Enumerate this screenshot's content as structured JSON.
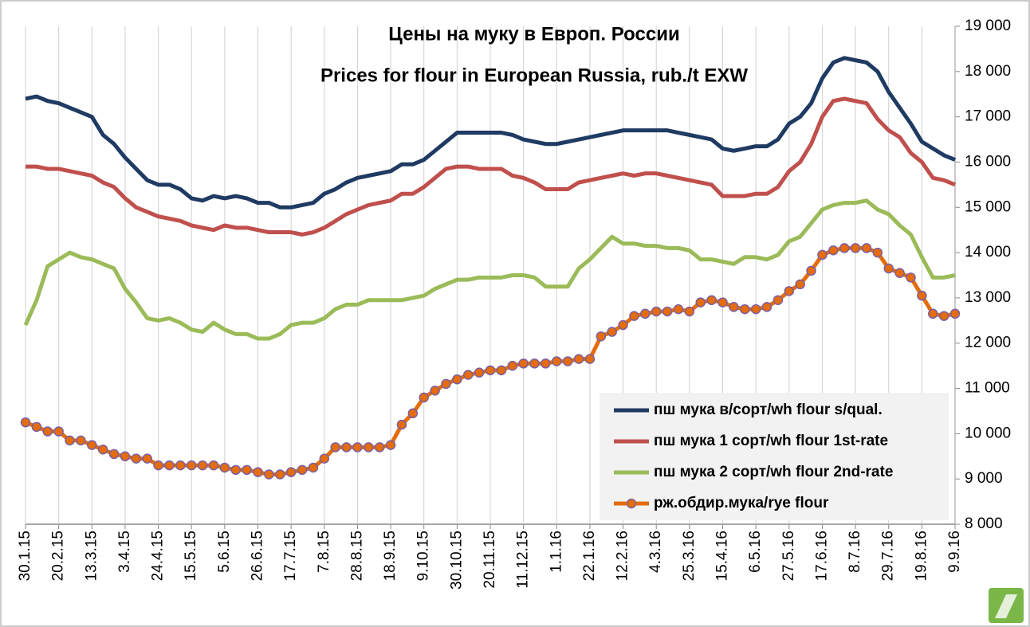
{
  "chart_data": {
    "type": "line",
    "title": "Цены на муку в Европ. России",
    "subtitle": "Prices for flour in European Russia, rub./t EXW",
    "categories": [
      "30.1.15",
      null,
      null,
      "20.2.15",
      null,
      null,
      "13.3.15",
      null,
      null,
      "3.4.15",
      null,
      null,
      "24.4.15",
      null,
      null,
      "15.5.15",
      null,
      null,
      "5.6.15",
      null,
      null,
      "26.6.15",
      null,
      null,
      "17.7.15",
      null,
      null,
      "7.8.15",
      null,
      null,
      "28.8.15",
      null,
      null,
      "18.9.15",
      null,
      null,
      "9.10.15",
      null,
      null,
      "30.10.15",
      null,
      null,
      "20.11.15",
      null,
      null,
      "11.12.15",
      null,
      null,
      "1.1.16",
      null,
      null,
      "22.1.16",
      null,
      null,
      "12.2.16",
      null,
      null,
      "4.3.16",
      null,
      null,
      "25.3.16",
      null,
      null,
      "15.4.16",
      null,
      null,
      "6.5.16",
      null,
      null,
      "27.5.16",
      null,
      null,
      "17.6.16",
      null,
      null,
      "8.7.16",
      null,
      null,
      "29.7.16",
      null,
      null,
      "19.8.16",
      null,
      null,
      "9.9.16"
    ],
    "series": [
      {
        "name": "пш мука в/сорт/wh flour s/qual.",
        "color": "#1f3b63",
        "marker": false,
        "values": [
          17400,
          17450,
          17350,
          17300,
          17200,
          17100,
          17000,
          16600,
          16400,
          16100,
          15850,
          15600,
          15500,
          15500,
          15400,
          15200,
          15150,
          15250,
          15200,
          15250,
          15200,
          15100,
          15100,
          15000,
          15000,
          15050,
          15100,
          15300,
          15400,
          15550,
          15650,
          15700,
          15750,
          15800,
          15950,
          15950,
          16050,
          16250,
          16450,
          16650,
          16650,
          16650,
          16650,
          16650,
          16600,
          16500,
          16450,
          16400,
          16400,
          16450,
          16500,
          16550,
          16600,
          16650,
          16700,
          16700,
          16700,
          16700,
          16700,
          16650,
          16600,
          16550,
          16500,
          16300,
          16250,
          16300,
          16350,
          16350,
          16500,
          16850,
          17000,
          17300,
          17850,
          18200,
          18300,
          18250,
          18200,
          18000,
          17550,
          17200,
          16850,
          16450,
          16300,
          16150,
          16050
        ]
      },
      {
        "name": "пш мука 1 сорт/wh flour 1st-rate",
        "color": "#c0504d",
        "marker": false,
        "values": [
          15900,
          15900,
          15850,
          15850,
          15800,
          15750,
          15700,
          15550,
          15450,
          15200,
          15000,
          14900,
          14800,
          14750,
          14700,
          14600,
          14550,
          14500,
          14600,
          14550,
          14550,
          14500,
          14450,
          14450,
          14450,
          14400,
          14450,
          14550,
          14700,
          14850,
          14950,
          15050,
          15100,
          15150,
          15300,
          15300,
          15450,
          15650,
          15850,
          15900,
          15900,
          15850,
          15850,
          15850,
          15700,
          15650,
          15550,
          15400,
          15400,
          15400,
          15550,
          15600,
          15650,
          15700,
          15750,
          15700,
          15750,
          15750,
          15700,
          15650,
          15600,
          15550,
          15500,
          15250,
          15250,
          15250,
          15300,
          15300,
          15450,
          15800,
          16000,
          16400,
          17000,
          17350,
          17400,
          17350,
          17300,
          16950,
          16700,
          16550,
          16200,
          16000,
          15650,
          15600,
          15500
        ]
      },
      {
        "name": "пш мука 2 сорт/wh flour 2nd-rate",
        "color": "#9bbb59",
        "marker": false,
        "values": [
          12400,
          12950,
          13700,
          13850,
          14000,
          13900,
          13850,
          13750,
          13650,
          13200,
          12900,
          12550,
          12500,
          12550,
          12450,
          12300,
          12250,
          12450,
          12300,
          12200,
          12200,
          12100,
          12100,
          12200,
          12400,
          12450,
          12450,
          12550,
          12750,
          12850,
          12850,
          12950,
          12950,
          12950,
          12950,
          13000,
          13050,
          13200,
          13300,
          13400,
          13400,
          13450,
          13450,
          13450,
          13500,
          13500,
          13450,
          13250,
          13250,
          13250,
          13650,
          13850,
          14100,
          14350,
          14200,
          14200,
          14150,
          14150,
          14100,
          14100,
          14050,
          13850,
          13850,
          13800,
          13750,
          13900,
          13900,
          13850,
          13950,
          14250,
          14350,
          14650,
          14950,
          15050,
          15100,
          15100,
          15150,
          14950,
          14850,
          14600,
          14400,
          13900,
          13450,
          13450,
          13500
        ]
      },
      {
        "name": "рж.обдир.мука/rye flour",
        "color": "#e46c0a",
        "marker": true,
        "values": [
          10250,
          10150,
          10050,
          10050,
          9850,
          9850,
          9750,
          9650,
          9550,
          9500,
          9450,
          9450,
          9300,
          9300,
          9300,
          9300,
          9300,
          9300,
          9250,
          9200,
          9200,
          9150,
          9100,
          9100,
          9150,
          9200,
          9250,
          9450,
          9700,
          9700,
          9700,
          9700,
          9700,
          9750,
          10200,
          10450,
          10800,
          10950,
          11100,
          11200,
          11300,
          11350,
          11400,
          11400,
          11500,
          11550,
          11550,
          11550,
          11600,
          11600,
          11650,
          11650,
          12150,
          12250,
          12400,
          12600,
          12650,
          12700,
          12700,
          12750,
          12700,
          12900,
          12950,
          12900,
          12800,
          12750,
          12750,
          12800,
          12950,
          13150,
          13300,
          13600,
          13950,
          14050,
          14100,
          14100,
          14100,
          14000,
          13650,
          13550,
          13450,
          13050,
          12650,
          12600,
          12650
        ]
      }
    ],
    "ylim": [
      8000,
      19000
    ],
    "yticks": [
      {
        "value": 8000,
        "label": "8 000"
      },
      {
        "value": 9000,
        "label": "9 000"
      },
      {
        "value": 10000,
        "label": "10 000"
      },
      {
        "value": 11000,
        "label": "11 000"
      },
      {
        "value": 12000,
        "label": "12 000"
      },
      {
        "value": 13000,
        "label": "13 000"
      },
      {
        "value": 14000,
        "label": "14 000"
      },
      {
        "value": 15000,
        "label": "15 000"
      },
      {
        "value": 16000,
        "label": "16 000"
      },
      {
        "value": 17000,
        "label": "17 000"
      },
      {
        "value": 18000,
        "label": "18 000"
      },
      {
        "value": 19000,
        "label": "19 000"
      }
    ],
    "grid": "x",
    "legend": "lower right"
  }
}
